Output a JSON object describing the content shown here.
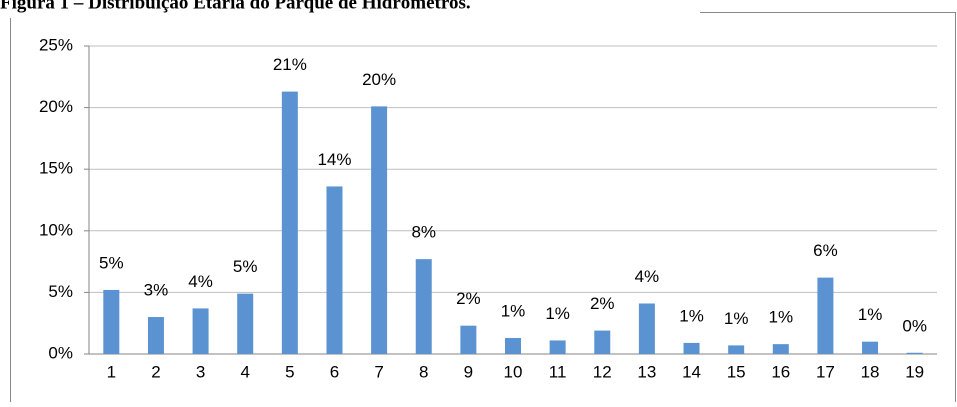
{
  "chart_data": {
    "type": "bar",
    "title": "Figura 1 – Distribuição Etária do Parque de Hidrômetros.",
    "categories": [
      "1",
      "2",
      "3",
      "4",
      "5",
      "6",
      "7",
      "8",
      "9",
      "10",
      "11",
      "12",
      "13",
      "14",
      "15",
      "16",
      "17",
      "18",
      "19"
    ],
    "values": [
      5.2,
      3.0,
      3.7,
      4.9,
      21.3,
      13.6,
      20.1,
      7.7,
      2.3,
      1.3,
      1.1,
      1.9,
      4.1,
      0.9,
      0.7,
      0.8,
      6.2,
      1.0,
      0.1
    ],
    "value_labels": [
      "5%",
      "3%",
      "4%",
      "5%",
      "21%",
      "14%",
      "20%",
      "8%",
      "2%",
      "1%",
      "1%",
      "2%",
      "4%",
      "1%",
      "1%",
      "1%",
      "6%",
      "1%",
      "0%"
    ],
    "color": "#5b93d2",
    "ylim": [
      0,
      25
    ],
    "yticks": [
      {
        "value": 0,
        "label": "0%"
      },
      {
        "value": 5,
        "label": "5%"
      },
      {
        "value": 10,
        "label": "10%"
      },
      {
        "value": 15,
        "label": "15%"
      },
      {
        "value": 20,
        "label": "20%"
      },
      {
        "value": 25,
        "label": "25%"
      }
    ],
    "grid": true
  }
}
